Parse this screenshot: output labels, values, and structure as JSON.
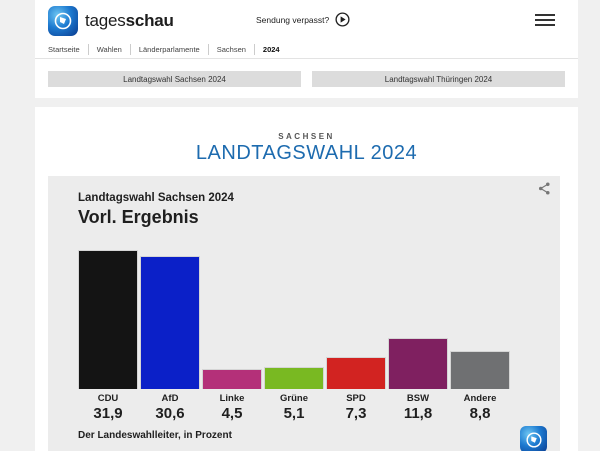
{
  "header": {
    "brand_regular": "tages",
    "brand_bold": "schau",
    "sendung_verpasst": "Sendung verpasst?",
    "breadcrumb": [
      "Startseite",
      "Wahlen",
      "Länderparlamente",
      "Sachsen",
      "2024"
    ]
  },
  "quick_links": {
    "sachsen": "Landtagswahl Sachsen 2024",
    "thueringen": "Landtagswahl Thüringen 2024"
  },
  "page": {
    "kicker": "SACHSEN",
    "title": "LANDTAGSWAHL 2024",
    "title_color": "#1d6baf"
  },
  "chart_data": {
    "type": "bar",
    "title": "Landtagswahl Sachsen 2024",
    "subtitle": "Vorl. Ergebnis",
    "categories": [
      "CDU",
      "AfD",
      "Linke",
      "Grüne",
      "SPD",
      "BSW",
      "Andere"
    ],
    "values": [
      31.9,
      30.6,
      4.5,
      5.1,
      7.3,
      11.8,
      8.8
    ],
    "value_labels": [
      "31,9",
      "30,6",
      "4,5",
      "5,1",
      "7,3",
      "11,8",
      "8,8"
    ],
    "colors": [
      "#141414",
      "#0b20c8",
      "#b43079",
      "#79b922",
      "#d22321",
      "#7f2060",
      "#6f7072"
    ],
    "unit": "Prozent",
    "source": "Der Landeswahlleiter, in Prozent",
    "ylim": [
      0,
      32
    ],
    "grid": false,
    "legend": "none"
  }
}
